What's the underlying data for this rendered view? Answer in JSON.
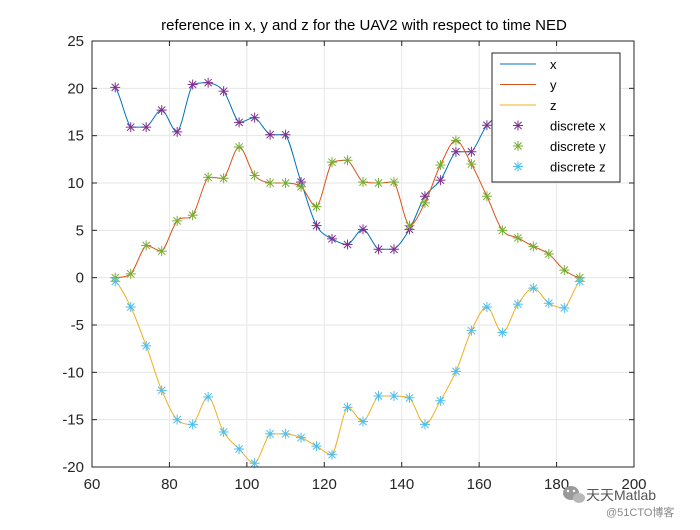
{
  "colors": {
    "x": "#0072BD",
    "y": "#D95319",
    "z": "#EDB120",
    "discrete_x": "#7E2F8E",
    "discrete_y": "#77AC30",
    "discrete_z": "#4DBEEE",
    "grid": "#e6e6e6",
    "axis": "#262626"
  },
  "watermark": {
    "icon": "wechat-icon",
    "line1": "天天Matlab",
    "line2": "@51CTO博客"
  },
  "chart_data": {
    "type": "line",
    "title": "reference in x, y and z for the UAV2 with respect to time NED",
    "xlabel": "",
    "ylabel": "",
    "xlim": [
      60,
      200
    ],
    "ylim": [
      -20,
      25
    ],
    "xticks": [
      60,
      80,
      100,
      120,
      140,
      160,
      180,
      200
    ],
    "yticks": [
      -20,
      -15,
      -10,
      -5,
      0,
      5,
      10,
      15,
      20,
      25
    ],
    "grid": true,
    "legend_position": "top-right",
    "series": [
      {
        "name": "x",
        "style": "line",
        "x": [
          66,
          70,
          74,
          78,
          82,
          86,
          90,
          94,
          98,
          102,
          106,
          110,
          114,
          118,
          122,
          126,
          130,
          134,
          138,
          142,
          146,
          150,
          154,
          158,
          162,
          166,
          170
        ],
        "values": [
          20.1,
          15.9,
          15.9,
          17.7,
          15.4,
          20.4,
          20.6,
          19.7,
          16.4,
          16.9,
          15.1,
          15.1,
          10.1,
          5.5,
          4.1,
          3.5,
          5.1,
          3.0,
          3.0,
          5.1,
          8.6,
          10.3,
          13.3,
          13.3,
          16.1,
          17.5,
          19.5
        ]
      },
      {
        "name": "y",
        "style": "line",
        "x": [
          66,
          70,
          74,
          78,
          82,
          86,
          90,
          94,
          98,
          102,
          106,
          110,
          114,
          118,
          122,
          126,
          130,
          134,
          138,
          142,
          146,
          150,
          154,
          158,
          162,
          166,
          170,
          174,
          178,
          182,
          186
        ],
        "values": [
          0.0,
          0.4,
          3.4,
          2.8,
          6.0,
          6.6,
          10.6,
          10.5,
          13.8,
          10.8,
          10.0,
          10.0,
          9.6,
          7.5,
          12.2,
          12.4,
          10.1,
          10.0,
          10.1,
          5.5,
          7.9,
          11.9,
          14.5,
          12.0,
          8.6,
          5.0,
          4.2,
          3.3,
          2.5,
          0.8,
          0.0
        ]
      },
      {
        "name": "z",
        "style": "line",
        "x": [
          66,
          70,
          74,
          78,
          82,
          86,
          90,
          94,
          98,
          102,
          106,
          110,
          114,
          118,
          122,
          126,
          130,
          134,
          138,
          142,
          146,
          150,
          154,
          158,
          162,
          166,
          170,
          174,
          178,
          182,
          186
        ],
        "values": [
          -0.4,
          -3.1,
          -7.2,
          -11.9,
          -15.0,
          -15.5,
          -12.6,
          -16.3,
          -18.1,
          -19.6,
          -16.5,
          -16.5,
          -16.9,
          -17.8,
          -18.7,
          -13.7,
          -15.2,
          -12.5,
          -12.5,
          -12.7,
          -15.5,
          -13.0,
          -9.9,
          -5.6,
          -3.1,
          -5.8,
          -2.8,
          -1.1,
          -2.7,
          -3.2,
          -0.4
        ]
      },
      {
        "name": "discrete x",
        "style": "marker",
        "x": [
          66,
          70,
          74,
          78,
          82,
          86,
          90,
          94,
          98,
          102,
          106,
          110,
          114,
          118,
          122,
          126,
          130,
          134,
          138,
          142,
          146,
          150,
          154,
          158,
          162,
          166,
          170
        ],
        "values": [
          20.1,
          15.9,
          15.9,
          17.7,
          15.4,
          20.4,
          20.6,
          19.7,
          16.4,
          16.9,
          15.1,
          15.1,
          10.1,
          5.5,
          4.1,
          3.5,
          5.1,
          3.0,
          3.0,
          5.1,
          8.6,
          10.3,
          13.3,
          13.3,
          16.1,
          17.5,
          19.5
        ]
      },
      {
        "name": "discrete y",
        "style": "marker",
        "x": [
          66,
          70,
          74,
          78,
          82,
          86,
          90,
          94,
          98,
          102,
          106,
          110,
          114,
          118,
          122,
          126,
          130,
          134,
          138,
          142,
          146,
          150,
          154,
          158,
          162,
          166,
          170,
          174,
          178,
          182,
          186
        ],
        "values": [
          0.0,
          0.4,
          3.4,
          2.8,
          6.0,
          6.6,
          10.6,
          10.5,
          13.8,
          10.8,
          10.0,
          10.0,
          9.6,
          7.5,
          12.2,
          12.4,
          10.1,
          10.0,
          10.1,
          5.5,
          7.9,
          11.9,
          14.5,
          12.0,
          8.6,
          5.0,
          4.2,
          3.3,
          2.5,
          0.8,
          0.0
        ]
      },
      {
        "name": "discrete z",
        "style": "marker",
        "x": [
          66,
          70,
          74,
          78,
          82,
          86,
          90,
          94,
          98,
          102,
          106,
          110,
          114,
          118,
          122,
          126,
          130,
          134,
          138,
          142,
          146,
          150,
          154,
          158,
          162,
          166,
          170,
          174,
          178,
          182,
          186
        ],
        "values": [
          -0.4,
          -3.1,
          -7.2,
          -11.9,
          -15.0,
          -15.5,
          -12.6,
          -16.3,
          -18.1,
          -19.6,
          -16.5,
          -16.5,
          -16.9,
          -17.8,
          -18.7,
          -13.7,
          -15.2,
          -12.5,
          -12.5,
          -12.7,
          -15.5,
          -13.0,
          -9.9,
          -5.6,
          -3.1,
          -5.8,
          -2.8,
          -1.1,
          -2.7,
          -3.2,
          -0.4
        ]
      }
    ]
  }
}
